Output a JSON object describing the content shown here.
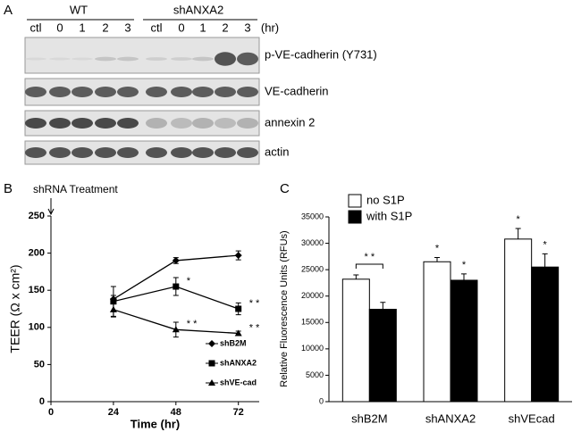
{
  "blot": {
    "panel_label": "A",
    "groups": [
      "WT",
      "shANXA2"
    ],
    "lanes": [
      "ctl",
      "0",
      "1",
      "2",
      "3",
      "ctl",
      "0",
      "1",
      "2",
      "3"
    ],
    "unit": "(hr)",
    "rows": [
      "p-VE-cadherin (Y731)",
      "VE-cadherin",
      "annexin 2",
      "actin"
    ]
  },
  "chart_data": [
    {
      "type": "line",
      "panel_label": "B",
      "annotation": "shRNA Treatment",
      "xlabel": "Time (hr)",
      "ylabel": "TEER (Ω x cm²)",
      "x": [
        24,
        48,
        72
      ],
      "xlim": [
        0,
        80
      ],
      "xticks": [
        0,
        24,
        48,
        72
      ],
      "ylim": [
        0,
        250
      ],
      "yticks": [
        0,
        50,
        100,
        150,
        200,
        250
      ],
      "legend": "lower right",
      "series": [
        {
          "name": "shB2M",
          "color": "#000000",
          "marker": "diamond",
          "values": [
            138,
            190,
            197
          ],
          "errors": [
            5,
            4,
            6
          ],
          "stars": [
            null,
            null,
            null
          ]
        },
        {
          "name": "shANXA2",
          "color": "#000000",
          "marker": "square",
          "values": [
            135,
            155,
            125
          ],
          "errors": [
            20,
            12,
            8
          ],
          "stars": [
            null,
            "*",
            "* *"
          ]
        },
        {
          "name": "shVE-cad",
          "color": "#000000",
          "marker": "triangle",
          "values": [
            124,
            97,
            92
          ],
          "errors": [
            10,
            10,
            3
          ],
          "stars": [
            null,
            "* *",
            "* *"
          ]
        }
      ]
    },
    {
      "type": "bar",
      "panel_label": "C",
      "ylabel": "Relative Fluorescence Units (RFUs)",
      "categories": [
        "shB2M",
        "shANXA2",
        "shVEcad"
      ],
      "ylim": [
        0,
        35000
      ],
      "yticks": [
        0,
        5000,
        10000,
        15000,
        20000,
        25000,
        30000,
        35000
      ],
      "legend": "upper left",
      "bracket_label": "* *",
      "series": [
        {
          "name": "no S1P",
          "color": "#ffffff",
          "values": [
            23200,
            26500,
            30800
          ],
          "errors": [
            800,
            800,
            2000
          ],
          "stars": [
            null,
            "*",
            "*"
          ]
        },
        {
          "name": "with S1P",
          "color": "#000000",
          "values": [
            17500,
            23000,
            25500
          ],
          "errors": [
            1300,
            1200,
            2500
          ],
          "stars": [
            null,
            "*",
            "*"
          ]
        }
      ]
    }
  ]
}
